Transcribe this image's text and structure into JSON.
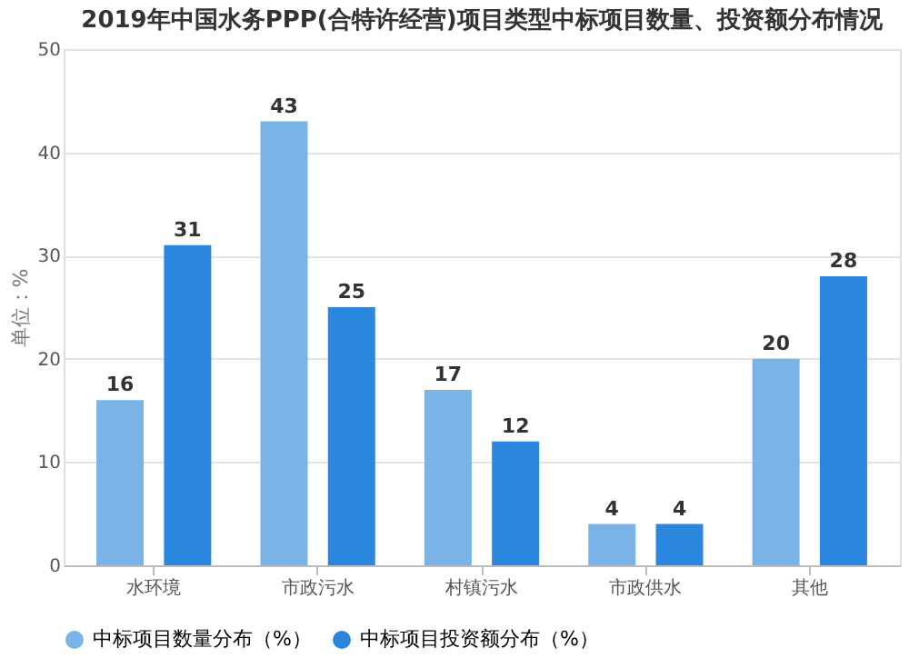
{
  "chart_data": {
    "type": "bar",
    "title": "2019年中国水务PPP(合特许经营)项目类型中标项目数量、投资额分布情况",
    "ylabel": "单位：%",
    "categories": [
      "水环境",
      "市政污水",
      "村镇污水",
      "市政供水",
      "其他"
    ],
    "series": [
      {
        "name": "中标项目数量分布（%）",
        "color": "#7ab3e8",
        "values": [
          16,
          43,
          17,
          4,
          20
        ]
      },
      {
        "name": "中标项目投资额分布（%）",
        "color": "#2b86de",
        "values": [
          31,
          25,
          12,
          4,
          28
        ]
      }
    ],
    "ylim": [
      0,
      50
    ],
    "yticks": [
      0,
      10,
      20,
      30,
      40,
      50
    ],
    "grid": "y",
    "legend": "bottom",
    "data_labels": true
  }
}
